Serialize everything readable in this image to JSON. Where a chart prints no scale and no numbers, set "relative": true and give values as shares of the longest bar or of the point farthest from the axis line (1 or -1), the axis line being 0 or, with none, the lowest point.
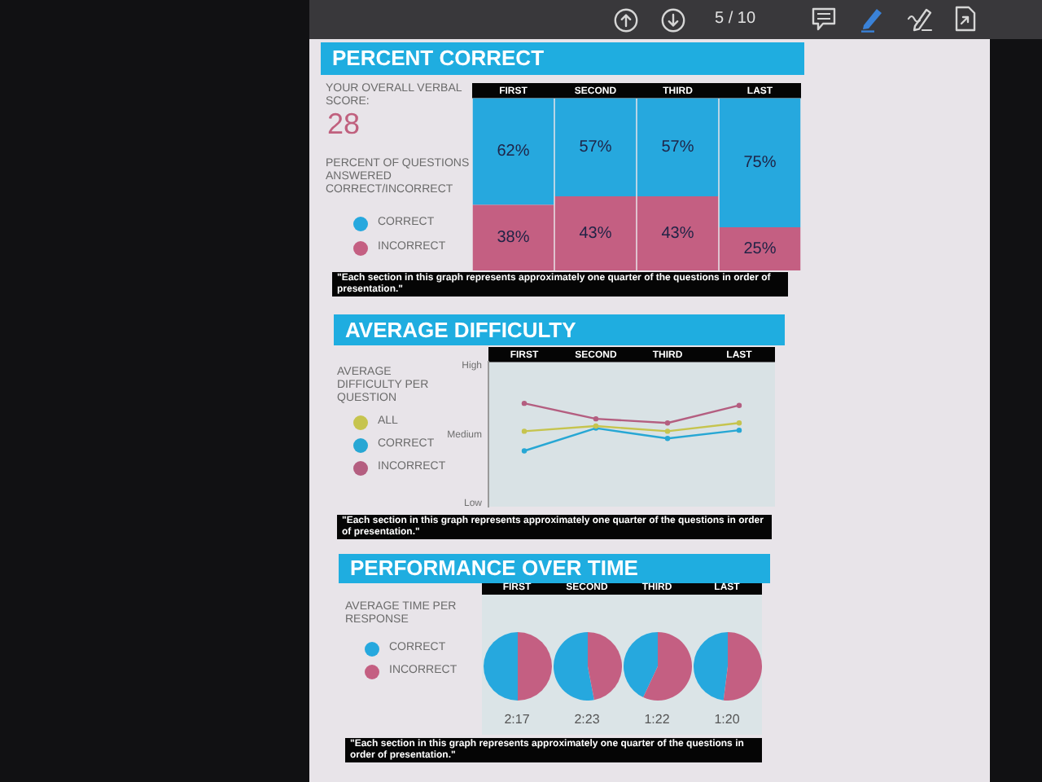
{
  "chart_data": [
    {
      "type": "other",
      "annotations": [
        "5 / 10"
      ]
    },
    {
      "type": "bar",
      "title": "PERCENT CORRECT",
      "legend_title": "PERCENT OF QUESTIONS ANSWERED CORRECT/INCORRECT",
      "categories": [
        "FIRST",
        "SECOND",
        "THIRD",
        "LAST"
      ],
      "stacked": true,
      "series": [
        {
          "name": "INCORRECT",
          "color": "#c45f82",
          "values": [
            38,
            43,
            43,
            25
          ],
          "value_labels": [
            "38%",
            "43%",
            "43%",
            "25%"
          ]
        },
        {
          "name": "CORRECT",
          "color": "#26a8de",
          "values": [
            62,
            57,
            57,
            75
          ],
          "value_labels": [
            "62%",
            "57%",
            "57%",
            "75%"
          ]
        }
      ],
      "legend": "left",
      "tick_labels": "x",
      "annotations": [
        "YOUR OVERALL VERBAL SCORE:",
        "28",
        "\"Each section in this graph represents approximately one quarter of the questions in order of presentation.\""
      ]
    },
    {
      "type": "line",
      "title": "AVERAGE DIFFICULTY",
      "legend_title": "AVERAGE DIFFICULTY PER QUESTION",
      "categories": [
        "FIRST",
        "SECOND",
        "THIRD",
        "LAST"
      ],
      "relative": true,
      "series": [
        {
          "name": "ALL",
          "color": "#c6c44e",
          "values": [
            0.73,
            0.78,
            0.73,
            0.81
          ]
        },
        {
          "name": "CORRECT",
          "color": "#27a7d4",
          "values": [
            0.54,
            0.76,
            0.66,
            0.74
          ]
        },
        {
          "name": "INCORRECT",
          "color": "#b45e80",
          "values": [
            1.0,
            0.85,
            0.81,
            0.98
          ]
        }
      ],
      "legend": "left",
      "marker": "circle",
      "annotations": [
        "High",
        "Medium",
        "Low",
        "\"Each section in this graph represents approximately one quarter of the questions in order of presentation.\""
      ]
    },
    {
      "type": "pie",
      "title": "PERFORMANCE OVER TIME",
      "legend_title": "AVERAGE TIME PER RESPONSE",
      "categories": [
        "CORRECT",
        "INCORRECT"
      ],
      "colors": [
        "#26a8de",
        "#c45f82"
      ],
      "series": [
        {
          "name": "FIRST",
          "values": [
            50,
            50
          ]
        },
        {
          "name": "SECOND",
          "values": [
            53,
            47
          ]
        },
        {
          "name": "THIRD",
          "values": [
            43,
            57
          ]
        },
        {
          "name": "LAST",
          "values": [
            48,
            52
          ]
        }
      ],
      "legend": "left",
      "annotations": [
        {
          "text": "2:17",
          "x": "FIRST"
        },
        {
          "text": "2:23",
          "x": "SECOND"
        },
        {
          "text": "1:22",
          "x": "THIRD"
        },
        {
          "text": "1:20",
          "x": "LAST"
        },
        "\"Each section in this graph represents approximately one quarter of the questions in order of presentation.\""
      ]
    }
  ]
}
